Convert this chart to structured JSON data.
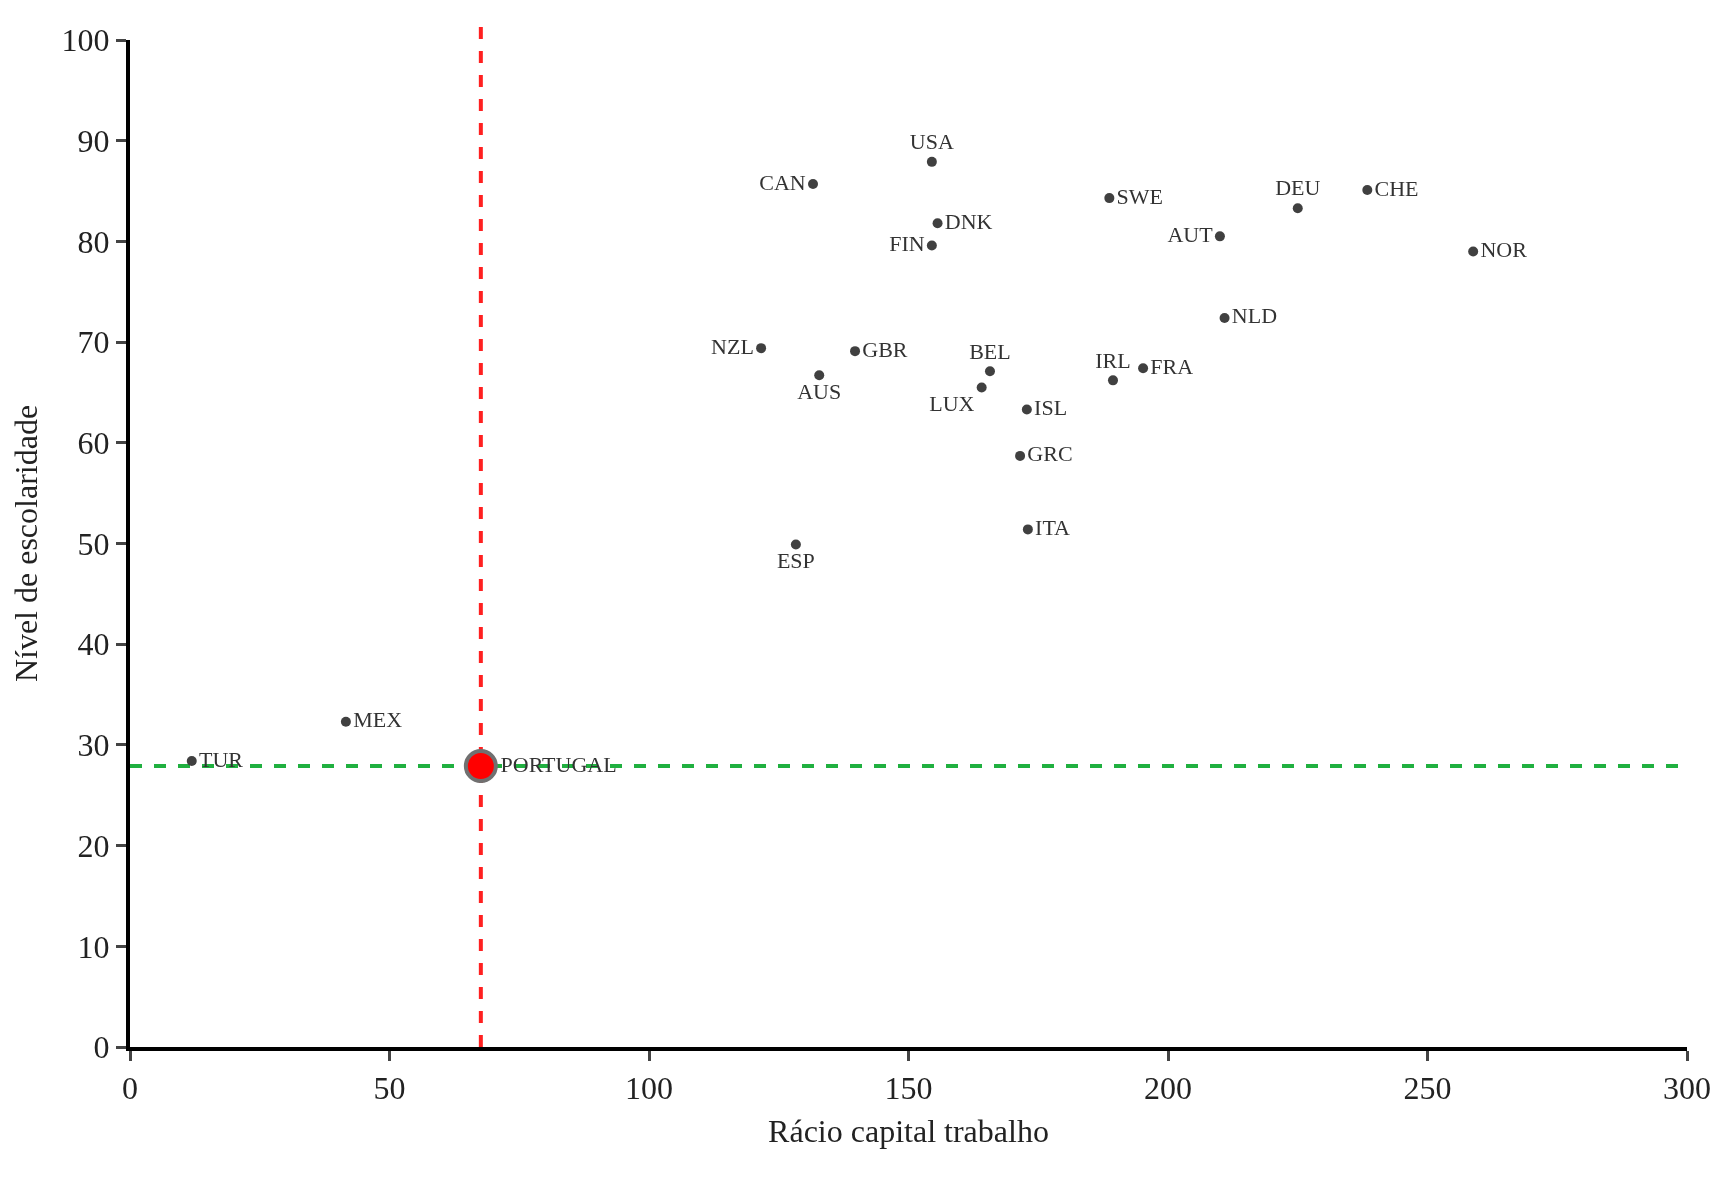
{
  "chart_data": {
    "type": "scatter",
    "xlabel": "Rácio capital trabalho",
    "ylabel": "Nível de escolaridade",
    "xlim": [
      0,
      300
    ],
    "ylim": [
      0,
      100
    ],
    "xticks": [
      0,
      50,
      100,
      150,
      200,
      250,
      300
    ],
    "yticks": [
      0,
      10,
      20,
      30,
      40,
      50,
      60,
      70,
      80,
      90,
      100
    ],
    "grid": false,
    "marker": "circle",
    "series": [
      {
        "color": "#404040",
        "x": [
          154.5,
          131.6,
          155.6,
          154.5,
          188.7,
          210,
          225,
          238.4,
          258.8,
          210.9,
          121.6,
          139.7,
          132.8,
          165.7,
          164.1,
          189.4,
          195.2,
          172.8,
          171.5,
          173,
          128.3,
          41.6,
          11.9
        ],
        "values": [
          87.9,
          85.7,
          81.8,
          79.6,
          84.3,
          80.5,
          83.3,
          85.1,
          79,
          72.4,
          69.4,
          69.1,
          66.7,
          67.1,
          65.5,
          66.2,
          67.4,
          63.3,
          58.7,
          51.4,
          49.9,
          32.3,
          28.4
        ],
        "value_labels": [
          "USA",
          "CAN",
          "DNK",
          "FIN",
          "SWE",
          "AUT",
          "DEU",
          "CHE",
          "NOR",
          "NLD",
          "NZL",
          "GBR",
          "AUS",
          "BEL",
          "LUX",
          "IRL",
          "FRA",
          "ISL",
          "GRC",
          "ITA",
          "ESP",
          "MEX",
          "TUR"
        ]
      },
      {
        "color": "#ff0000",
        "x": [
          67.6
        ],
        "values": [
          27.9
        ],
        "value_labels": [
          "PORTUGAL"
        ]
      }
    ],
    "ref_lines": [
      {
        "axis": "x",
        "value": 67.6,
        "color": "#ff2020",
        "line_style": "dashed"
      },
      {
        "axis": "y",
        "value": 27.9,
        "color": "#20b040",
        "line_style": "dashed"
      }
    ]
  }
}
